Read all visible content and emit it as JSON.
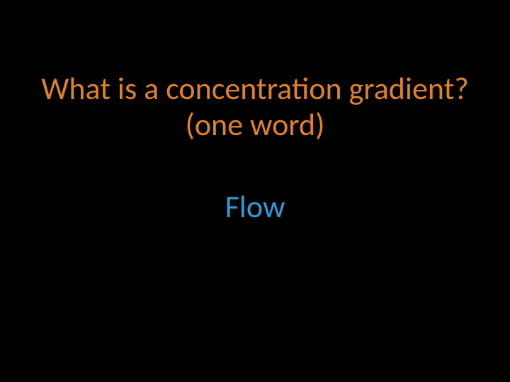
{
  "slide": {
    "background_color": "#000000",
    "question": {
      "line1": "What is a concentration gradient?",
      "line2": "(one word)",
      "color": "#e08128",
      "fontsize_pt": 44
    },
    "answer": {
      "text": "Flow",
      "color": "#2e9bd6",
      "fontsize_pt": 44
    }
  }
}
